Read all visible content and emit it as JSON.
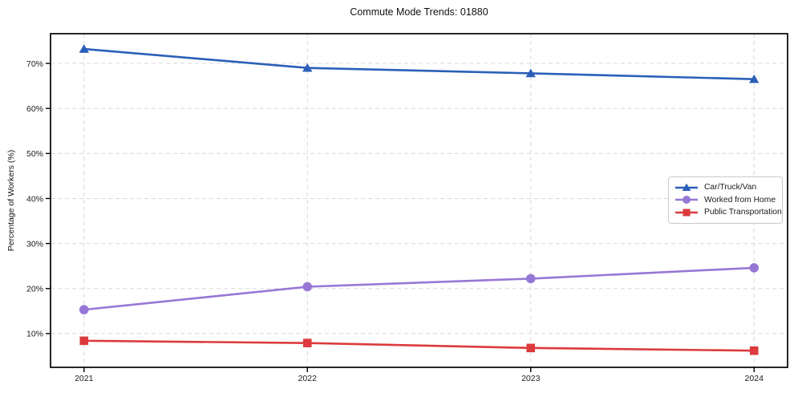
{
  "chart_data": {
    "type": "line",
    "title": "Commute Mode Trends: 01880",
    "xlabel": "",
    "ylabel": "Percentage of Workers (%)",
    "x": [
      2021,
      2022,
      2023,
      2024
    ],
    "x_tick_labels": [
      "2021",
      "2022",
      "2023",
      "2024"
    ],
    "y_ticks": [
      10,
      20,
      30,
      40,
      50,
      60,
      70
    ],
    "y_tick_labels": [
      "10%",
      "20%",
      "30%",
      "40%",
      "50%",
      "60%",
      "70%"
    ],
    "xlim": [
      2020.85,
      2024.15
    ],
    "ylim": [
      2.5,
      76.6
    ],
    "grid": true,
    "grid_style": "dashed",
    "legend_position": "center-right",
    "frame_color": "#000000",
    "grid_color": "#d8d8d8",
    "text_color": "#1a1a1a",
    "series": [
      {
        "name": "Car/Truck/Van",
        "color": "#2b5fb8",
        "marker": "triangle",
        "values": [
          73.2,
          69.0,
          67.8,
          66.5
        ]
      },
      {
        "name": "Worked from Home",
        "color": "#9777d5",
        "marker": "circle",
        "values": [
          15.3,
          20.4,
          22.2,
          24.6
        ]
      },
      {
        "name": "Public Transportation",
        "color": "#dc3a3d",
        "marker": "square",
        "values": [
          8.4,
          7.9,
          6.8,
          6.2
        ]
      }
    ]
  }
}
